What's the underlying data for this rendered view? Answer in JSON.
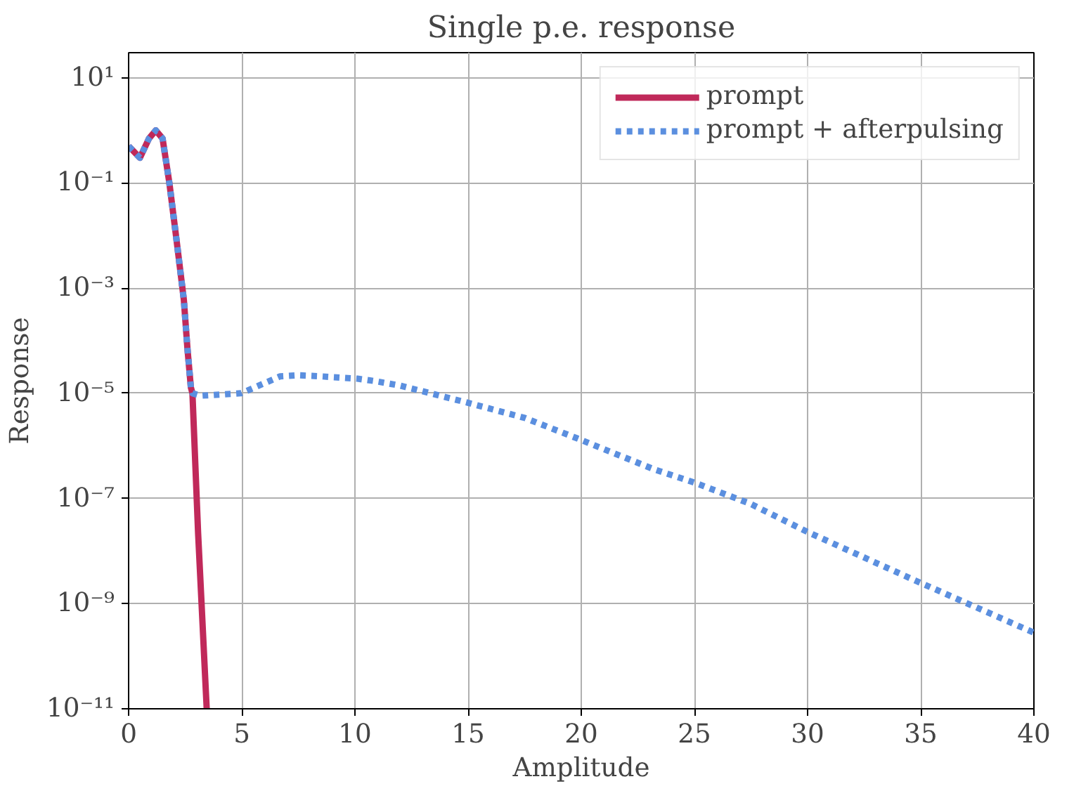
{
  "chart_data": {
    "type": "line",
    "title": "Single p.e. response",
    "xlabel": "Amplitude",
    "ylabel": "Response",
    "log": "y",
    "grid": true,
    "legend": "top right",
    "xlim": [
      0,
      40
    ],
    "xticks": [
      0,
      5,
      10,
      15,
      20,
      25,
      30,
      35,
      40
    ],
    "ylim": [
      1e-11,
      30
    ],
    "yticks": [
      {
        "value": 10,
        "label": "10¹"
      },
      {
        "value": 0.1,
        "label": "10⁻¹"
      },
      {
        "value": 0.001,
        "label": "10⁻³"
      },
      {
        "value": 1e-05,
        "label": "10⁻⁵"
      },
      {
        "value": 1e-07,
        "label": "10⁻⁷"
      },
      {
        "value": 1e-09,
        "label": "10⁻⁹"
      },
      {
        "value": 1e-11,
        "label": "10⁻¹¹"
      }
    ],
    "series": [
      {
        "name": "prompt",
        "color": "#c0295a",
        "line_style": "solid",
        "x": [
          0,
          0.5,
          0.9,
          1.2,
          1.5,
          1.8,
          2.12,
          2.44,
          2.6,
          2.75,
          2.82,
          3.07,
          3.45
        ],
        "values": [
          0.5,
          0.3,
          0.7,
          1.0,
          0.7,
          0.1,
          0.008,
          0.0006,
          7e-05,
          1.3e-05,
          1e-05,
          2.2e-08,
          1e-11
        ]
      },
      {
        "name": "prompt + afterpulsing",
        "color": "#5b8fdf",
        "line_style": "dotted",
        "x": [
          0,
          0.5,
          0.9,
          1.2,
          1.5,
          1.8,
          2.12,
          2.44,
          2.6,
          2.75,
          2.82,
          3.18,
          4.97,
          6.7,
          7.5,
          8.5,
          10.1,
          10.9,
          12,
          15.05,
          17.5,
          19.8,
          23.2,
          25,
          27.45,
          30,
          34.8,
          40
        ],
        "values": [
          0.5,
          0.3,
          0.7,
          1.0,
          0.7,
          0.1,
          0.008,
          0.0006,
          7e-05,
          1.3e-05,
          1e-05,
          9e-06,
          1e-05,
          2.1e-05,
          2.2e-05,
          2.1e-05,
          1.9e-05,
          1.7e-05,
          1.4e-05,
          6.5e-06,
          3.4e-06,
          1.4e-06,
          3.6e-07,
          2e-07,
          8e-08,
          2.3e-08,
          2.7e-09,
          2.8e-10
        ]
      }
    ]
  }
}
